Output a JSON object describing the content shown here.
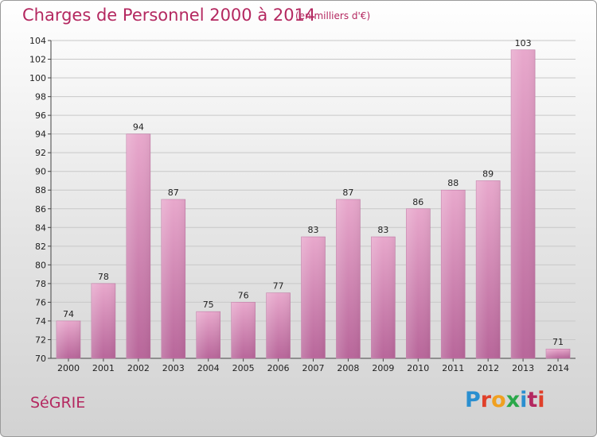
{
  "chart_data": {
    "type": "bar",
    "title": "Charges de Personnel 2000 à 2014",
    "unit_note": "(en milliers d'€)",
    "categories": [
      "2000",
      "2001",
      "2002",
      "2003",
      "2004",
      "2005",
      "2006",
      "2007",
      "2008",
      "2009",
      "2010",
      "2011",
      "2012",
      "2013",
      "2014"
    ],
    "values": [
      74,
      78,
      94,
      87,
      75,
      76,
      77,
      83,
      87,
      83,
      86,
      88,
      89,
      103,
      71
    ],
    "ylim": [
      70,
      104
    ],
    "yticks": [
      70,
      72,
      74,
      76,
      78,
      80,
      82,
      84,
      86,
      88,
      90,
      92,
      94,
      96,
      98,
      100,
      102,
      104
    ],
    "grid": true,
    "legend": "none",
    "bar_color": "#d98ab5"
  },
  "footer": {
    "commune": "SéGRIE",
    "logo": "Proxiti"
  },
  "colors": {
    "title": "#b42860",
    "logo_letters": [
      "#2a8fd0",
      "#e0402a",
      "#f0a020",
      "#2aa84a",
      "#2a8fd0",
      "#b42860",
      "#e0402a"
    ]
  }
}
